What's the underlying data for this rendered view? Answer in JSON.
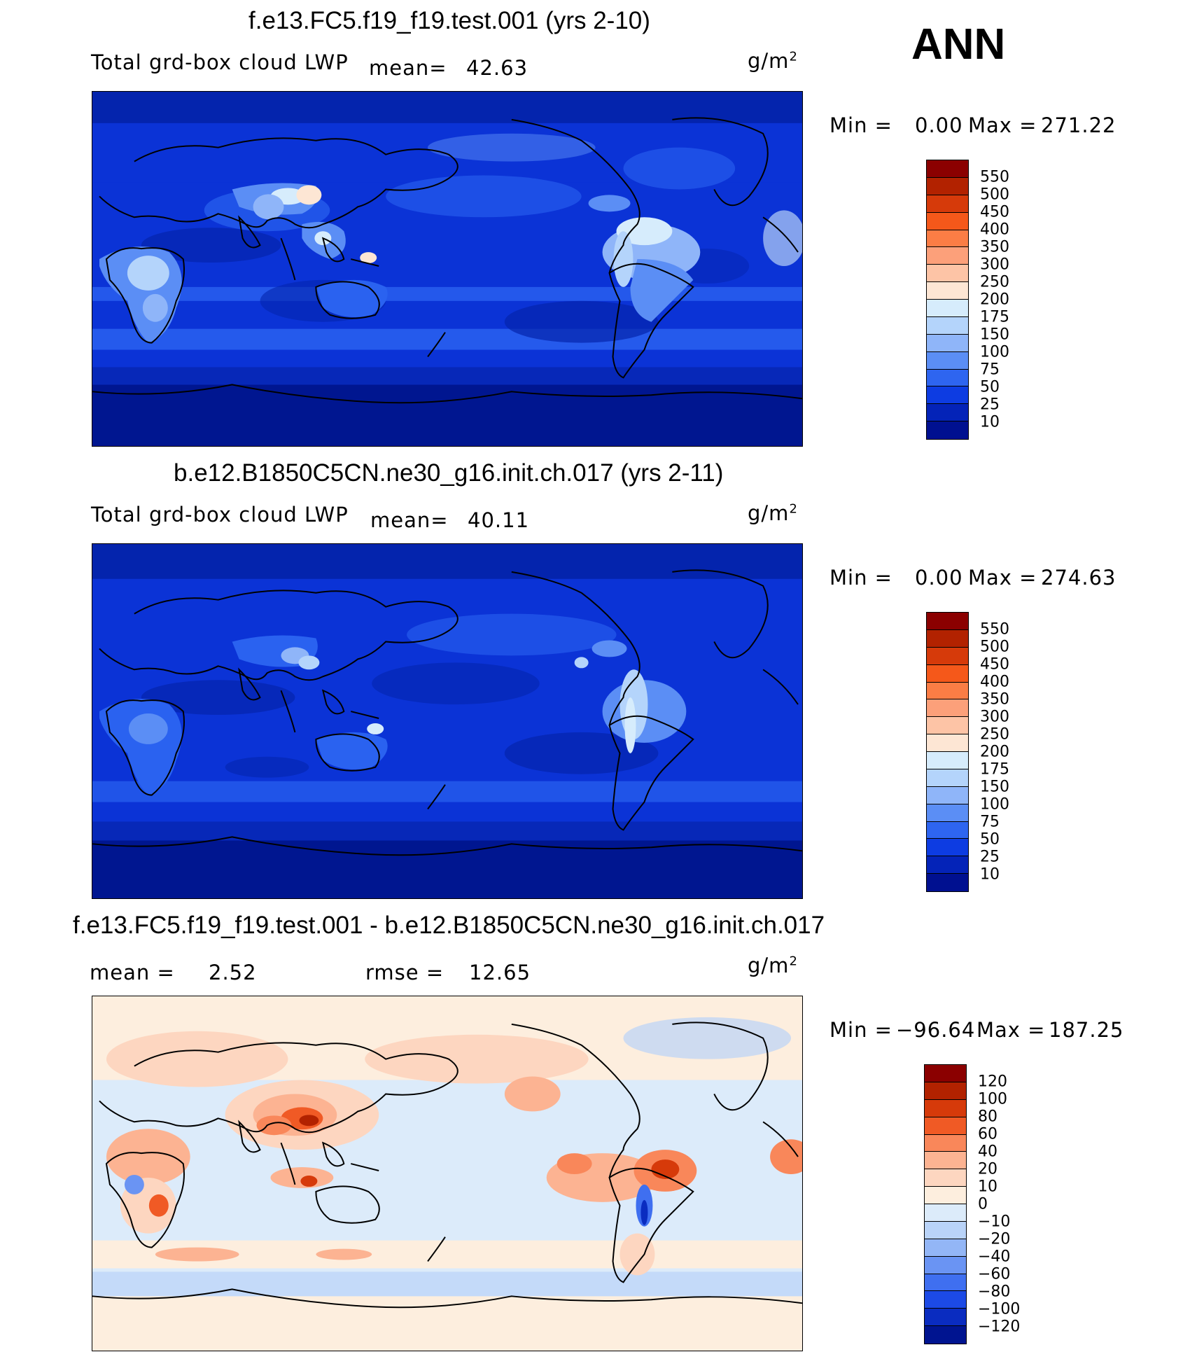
{
  "season": "ANN",
  "panels": [
    {
      "title": "f.e13.FC5.f19_f19.test.001 (yrs 2-10)",
      "variable": "Total grd-box cloud LWP",
      "mean_label": "mean=",
      "mean_value": "42.63",
      "unit": "g/m",
      "unit_exp": "2",
      "min_label": "Min  =",
      "min_value": "0.00",
      "max_label": "Max  =",
      "max_value": "271.22",
      "colorbar": {
        "colors": [
          "#8b0000",
          "#b22200",
          "#d63a0a",
          "#f5581a",
          "#fb7d45",
          "#fca07a",
          "#fdc4a6",
          "#fde6d4",
          "#d6ecfc",
          "#b4d4fb",
          "#8fb5f9",
          "#5b8ef5",
          "#2e65f0",
          "#0d3ce2",
          "#0423b8",
          "#001090"
        ],
        "labels": [
          "550",
          "500",
          "450",
          "400",
          "350",
          "300",
          "250",
          "200",
          "175",
          "150",
          "100",
          "75",
          "50",
          "25",
          "10"
        ]
      }
    },
    {
      "title": "b.e12.B1850C5CN.ne30_g16.init.ch.017 (yrs 2-11)",
      "variable": "Total grd-box cloud LWP",
      "mean_label": "mean=",
      "mean_value": "40.11",
      "unit": "g/m",
      "unit_exp": "2",
      "min_label": "Min  =",
      "min_value": "0.00",
      "max_label": "Max  =",
      "max_value": "274.63",
      "colorbar": {
        "colors": [
          "#8b0000",
          "#b22200",
          "#d63a0a",
          "#f5581a",
          "#fb7d45",
          "#fca07a",
          "#fdc4a6",
          "#fde6d4",
          "#d6ecfc",
          "#b4d4fb",
          "#8fb5f9",
          "#5b8ef5",
          "#2e65f0",
          "#0d3ce2",
          "#0423b8",
          "#001090"
        ],
        "labels": [
          "550",
          "500",
          "450",
          "400",
          "350",
          "300",
          "250",
          "200",
          "175",
          "150",
          "100",
          "75",
          "50",
          "25",
          "10"
        ]
      }
    },
    {
      "title": "f.e13.FC5.f19_f19.test.001 - b.e12.B1850C5CN.ne30_g16.init.ch.017",
      "mean_label": "mean  =",
      "mean_value": "2.52",
      "rmse_label": "rmse  =",
      "rmse_value": "12.65",
      "unit": "g/m",
      "unit_exp": "2",
      "min_label": "Min  =",
      "min_value": "−96.64",
      "max_label": "Max  =",
      "max_value": "187.25",
      "colorbar": {
        "colors": [
          "#8b0000",
          "#b22200",
          "#d63a0a",
          "#f05a25",
          "#f9875a",
          "#fcb392",
          "#fdd6c0",
          "#fdeede",
          "#dcebfa",
          "#b9d3f8",
          "#93b6f6",
          "#6a94f3",
          "#3f6ff0",
          "#1c4ae6",
          "#0a2cc0",
          "#001490"
        ],
        "labels": [
          "120",
          "100",
          "80",
          "60",
          "40",
          "20",
          "10",
          "0",
          "−10",
          "−20",
          "−40",
          "−60",
          "−80",
          "−100",
          "−120"
        ]
      }
    }
  ]
}
